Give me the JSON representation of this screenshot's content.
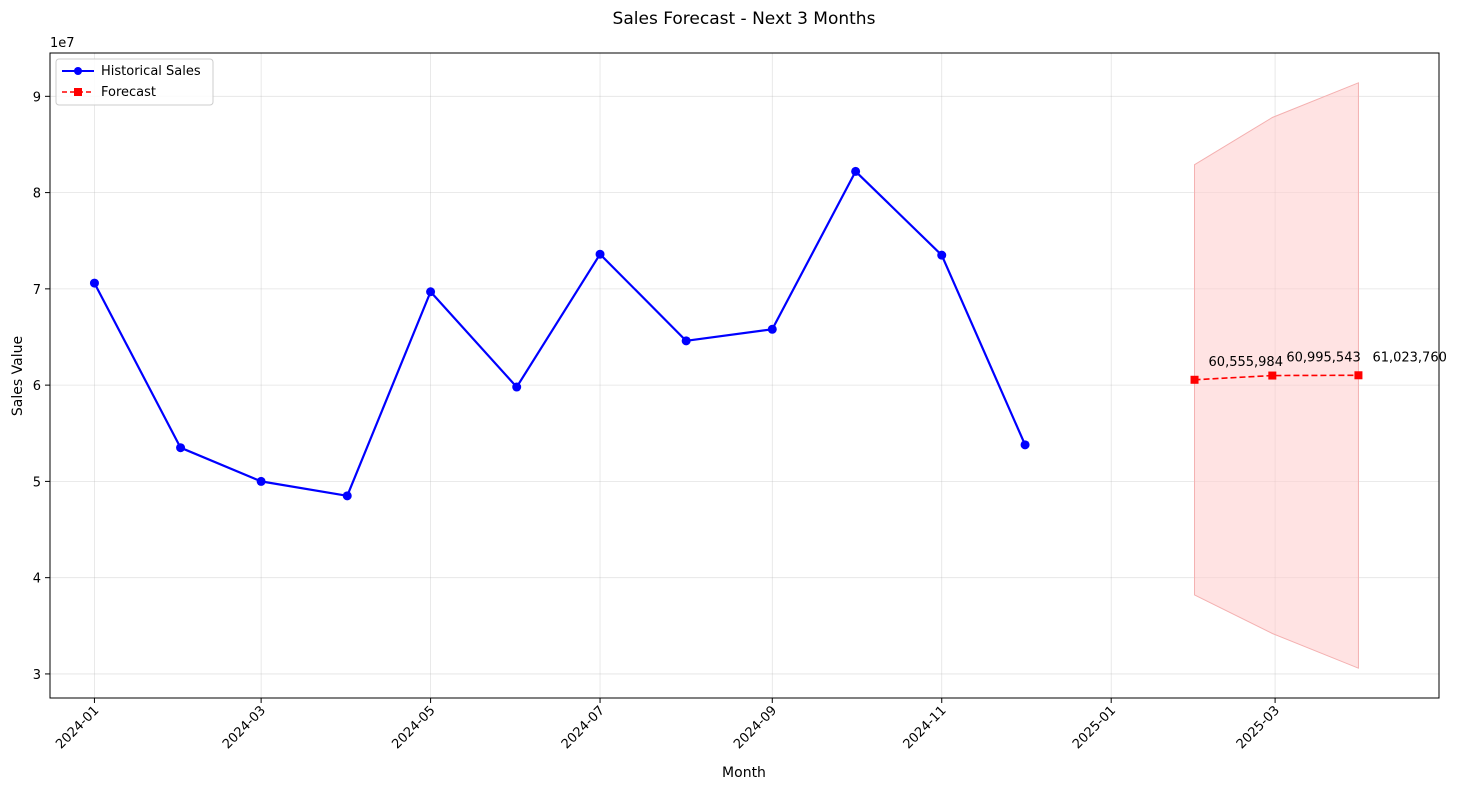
{
  "chart_data": {
    "type": "line",
    "title": "Sales Forecast - Next 3 Months",
    "xlabel": "Month",
    "ylabel": "Sales Value",
    "y_scale_label": "1e7",
    "ylim": [
      27500000,
      94500000
    ],
    "xlim": [
      "2023-12-16",
      "2025-04-29"
    ],
    "grid": true,
    "legend_position": "top-left",
    "x_ticks": [
      "2024-01",
      "2024-03",
      "2024-05",
      "2024-07",
      "2024-09",
      "2024-11",
      "2025-01",
      "2025-03"
    ],
    "y_ticks": [
      {
        "value": 30000000,
        "label": "3"
      },
      {
        "value": 40000000,
        "label": "4"
      },
      {
        "value": 50000000,
        "label": "5"
      },
      {
        "value": 60000000,
        "label": "6"
      },
      {
        "value": 70000000,
        "label": "7"
      },
      {
        "value": 80000000,
        "label": "8"
      },
      {
        "value": 90000000,
        "label": "9"
      }
    ],
    "series": [
      {
        "name": "Historical Sales",
        "color": "#0000ff",
        "marker": "circle",
        "line_style": "solid",
        "x": [
          "2024-01-01",
          "2024-02-01",
          "2024-03-01",
          "2024-04-01",
          "2024-05-01",
          "2024-06-01",
          "2024-07-01",
          "2024-08-01",
          "2024-09-01",
          "2024-10-01",
          "2024-11-01",
          "2024-12-01"
        ],
        "values": [
          70600000,
          53500000,
          50000000,
          48500000,
          69700000,
          59800000,
          73600000,
          64600000,
          65800000,
          82200000,
          73500000,
          53800000
        ]
      },
      {
        "name": "Forecast",
        "color": "#ff0000",
        "marker": "square",
        "line_style": "dashed",
        "x": [
          "2025-01-31",
          "2025-02-28",
          "2025-03-31"
        ],
        "values": [
          60555984,
          60995543,
          61023760
        ],
        "data_labels": [
          "60,555,984",
          "60,995,543",
          "61,023,760"
        ],
        "interval_upper": [
          82900000,
          87800000,
          91400000
        ],
        "interval_lower": [
          38200000,
          34200000,
          30600000
        ],
        "interval_color": "#ffcccc"
      }
    ]
  }
}
